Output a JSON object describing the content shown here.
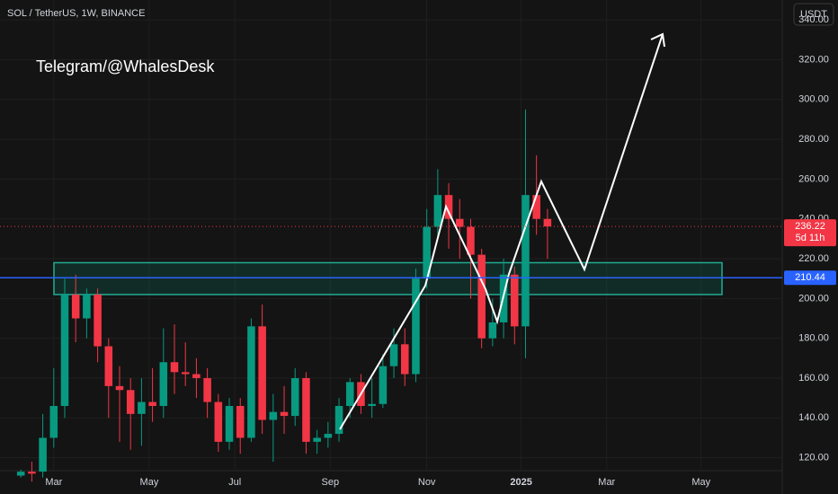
{
  "chart_data": {
    "type": "candlestick",
    "title": "SOL / TetherUS, 1W, BINANCE",
    "annotation": "Telegram/@WhalesDesk",
    "currency": "USDT",
    "up_color": "#089981",
    "down_color": "#f23645",
    "open": [
      111,
      113,
      113,
      130,
      146,
      202,
      190,
      202,
      176,
      156,
      154,
      142,
      148,
      146,
      168,
      163,
      162,
      160,
      148,
      128,
      146,
      130,
      186,
      139,
      143,
      141,
      160,
      128,
      130,
      132,
      146,
      158,
      146,
      147,
      166,
      177,
      162,
      210,
      236,
      252,
      240,
      236,
      222,
      180,
      188,
      212,
      186,
      252,
      240
    ],
    "high": [
      114,
      118,
      142,
      165,
      210,
      212,
      205,
      205,
      180,
      166,
      160,
      160,
      165,
      185,
      187,
      178,
      170,
      165,
      152,
      150,
      150,
      190,
      197,
      152,
      156,
      165,
      163,
      134,
      138,
      150,
      160,
      162,
      160,
      172,
      185,
      185,
      215,
      245,
      265,
      258,
      250,
      240,
      225,
      200,
      220,
      216,
      295,
      272,
      245
    ],
    "low": [
      110,
      108,
      110,
      125,
      140,
      178,
      180,
      168,
      140,
      128,
      124,
      126,
      138,
      140,
      152,
      156,
      150,
      140,
      123,
      124,
      122,
      128,
      132,
      118,
      132,
      136,
      122,
      122,
      125,
      128,
      140,
      142,
      140,
      145,
      160,
      156,
      158,
      205,
      230,
      225,
      220,
      200,
      175,
      176,
      180,
      177,
      170,
      232,
      220
    ],
    "close": [
      113,
      112,
      130,
      146,
      202,
      190,
      202,
      176,
      156,
      154,
      142,
      148,
      146,
      168,
      163,
      162,
      160,
      148,
      128,
      146,
      130,
      186,
      139,
      143,
      141,
      160,
      128,
      130,
      132,
      146,
      158,
      146,
      147,
      166,
      177,
      162,
      210,
      236,
      252,
      240,
      236,
      222,
      180,
      188,
      212,
      186,
      252,
      240,
      236.22
    ],
    "ylim": [
      113.5,
      350
    ],
    "yticks": [
      {
        "value": 120,
        "label": "120.00"
      },
      {
        "value": 140,
        "label": "140.00"
      },
      {
        "value": 160,
        "label": "160.00"
      },
      {
        "value": 180,
        "label": "180.00"
      },
      {
        "value": 200,
        "label": "200.00"
      },
      {
        "value": 220,
        "label": "220.00"
      },
      {
        "value": 240,
        "label": "240.00"
      },
      {
        "value": 260,
        "label": "260.00"
      },
      {
        "value": 280,
        "label": "280.00"
      },
      {
        "value": 300,
        "label": "300.00"
      },
      {
        "value": 320,
        "label": "320.00"
      },
      {
        "value": 340,
        "label": "340.00"
      }
    ],
    "xlim": [
      -1.9,
      69.4
    ],
    "xticks": [
      {
        "value": 3,
        "label": "Mar"
      },
      {
        "value": 11.7,
        "label": "May"
      },
      {
        "value": 19.5,
        "label": "Jul"
      },
      {
        "value": 28.2,
        "label": "Sep"
      },
      {
        "value": 37,
        "label": "Nov"
      },
      {
        "value": 45.6,
        "label": "2025"
      },
      {
        "value": 53.4,
        "label": "Mar"
      },
      {
        "value": 62,
        "label": "May"
      }
    ],
    "zone": [
      202,
      218
    ],
    "last_price": {
      "value": 236.22,
      "label": "236.22",
      "countdown": "5d 11h"
    },
    "level": {
      "value": 210.44,
      "label": "210.44",
      "color": "#2962ff"
    }
  }
}
